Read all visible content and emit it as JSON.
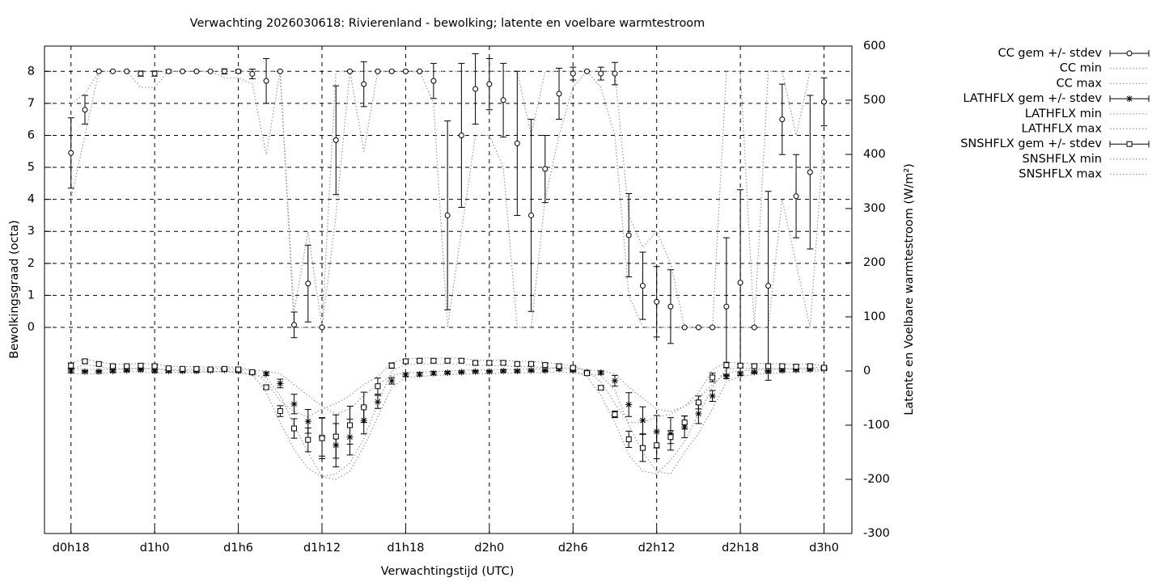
{
  "chart_data": {
    "type": "scatter",
    "title": "Verwachting 2026030618: Rivierenland - bewolking; latente en voelbare warmtestroom",
    "x_label": "Verwachtingstijd (UTC)",
    "y_label": "Bewolkingsgraad (octa)",
    "y2_label": "Latente en Voelbare warmtestroom (W/m²)",
    "x": [
      0,
      1,
      2,
      3,
      4,
      5,
      6,
      7,
      8,
      9,
      10,
      11,
      12,
      13,
      14,
      15,
      16,
      17,
      18,
      19,
      20,
      21,
      22,
      23,
      24,
      25,
      26,
      27,
      28,
      29,
      30,
      31,
      32,
      33,
      34,
      35,
      36,
      37,
      38,
      39,
      40,
      41,
      42,
      43,
      44,
      45,
      46,
      47,
      48,
      49,
      50,
      51,
      52,
      53,
      54
    ],
    "xlim": [
      -1.9,
      56
    ],
    "xticks": [
      {
        "value": 0,
        "label": "d0h18"
      },
      {
        "value": 6,
        "label": "d1h0"
      },
      {
        "value": 12,
        "label": "d1h6"
      },
      {
        "value": 18,
        "label": "d1h12"
      },
      {
        "value": 24,
        "label": "d1h18"
      },
      {
        "value": 30,
        "label": "d2h0"
      },
      {
        "value": 36,
        "label": "d2h6"
      },
      {
        "value": 42,
        "label": "d2h12"
      },
      {
        "value": 48,
        "label": "d2h18"
      },
      {
        "value": 54,
        "label": "d3h0"
      }
    ],
    "ylim": [
      -6.44,
      8.79
    ],
    "yticks": [
      0,
      1,
      2,
      3,
      4,
      5,
      6,
      7,
      8
    ],
    "y2lim": [
      -300,
      600
    ],
    "y2ticks": [
      -300,
      -200,
      -100,
      0,
      100,
      200,
      300,
      400,
      500,
      600
    ],
    "grid": true,
    "legend": "outside-top-right",
    "series": [
      {
        "name": "CC gem +/- stdev",
        "style": "errorbars",
        "marker": "circle",
        "color": "#000000",
        "values": [
          5.45,
          6.8,
          8,
          8,
          8,
          7.93,
          7.93,
          8,
          8,
          8,
          8,
          8,
          8,
          7.92,
          7.7,
          8,
          0.08,
          1.37,
          0,
          5.85,
          8,
          7.6,
          8,
          8,
          8,
          8,
          7.7,
          3.5,
          6.0,
          7.45,
          7.6,
          7.1,
          5.75,
          3.5,
          4.95,
          7.3,
          7.93,
          8,
          7.93,
          7.93,
          2.88,
          1.3,
          0.8,
          0.65,
          0,
          0,
          0,
          0.65,
          1.4,
          0,
          1.3,
          6.5,
          4.1,
          4.85,
          7.05
        ],
        "errors": [
          1.1,
          0.45,
          0,
          0,
          0,
          0.08,
          0.08,
          0.05,
          0,
          0,
          0,
          0.08,
          0.05,
          0.15,
          0.7,
          0,
          0.4,
          1.2,
          0,
          1.7,
          0,
          0.7,
          0,
          0,
          0,
          0,
          0.55,
          2.95,
          2.25,
          1.1,
          0.8,
          1.15,
          2.25,
          3.0,
          1.05,
          0.8,
          0.2,
          0,
          0.2,
          0.35,
          1.3,
          1.05,
          1.1,
          1.15,
          0,
          0,
          0,
          2.15,
          2.9,
          0,
          2.95,
          1.1,
          1.3,
          2.4,
          0.75
        ]
      },
      {
        "name": "CC min",
        "style": "dotted",
        "color": "#999999",
        "values": [
          4,
          6,
          8,
          8,
          8,
          7.5,
          7.5,
          8,
          8,
          8,
          8,
          7.8,
          7.8,
          7.6,
          5.4,
          8,
          0,
          0,
          0,
          3.5,
          8,
          5.5,
          8,
          8,
          8,
          8,
          7,
          0,
          3,
          6,
          6,
          5,
          0,
          0,
          4,
          6,
          7.5,
          8,
          7.5,
          6,
          1,
          0,
          0,
          0,
          0,
          0,
          0,
          0,
          0,
          0,
          0,
          4,
          2,
          0,
          6
        ]
      },
      {
        "name": "CC max",
        "style": "dotted",
        "color": "#999999",
        "values": [
          7,
          7.3,
          8,
          8,
          8,
          8,
          8,
          8,
          8,
          8,
          8,
          8,
          8,
          8,
          8,
          8,
          0.5,
          3,
          0,
          8,
          8,
          8,
          8,
          8,
          8,
          8,
          8,
          8,
          8,
          8,
          8,
          8,
          8,
          6,
          8,
          8,
          8,
          8,
          8,
          8,
          3.5,
          2.5,
          3,
          2,
          0,
          0,
          0,
          8,
          8,
          0,
          8,
          8,
          6,
          8,
          8
        ]
      },
      {
        "name": "LATHFLX gem +/- stdev",
        "style": "errorbars",
        "marker": "star",
        "color": "#000000",
        "axis": "y2",
        "values": [
          0,
          -1,
          -1,
          0,
          1,
          2,
          0,
          0,
          0,
          0,
          1,
          2,
          0,
          -3,
          -5,
          -23,
          -61,
          -93,
          -122,
          -137,
          -122,
          -91,
          -57,
          -18,
          -7,
          -6,
          -4,
          -3,
          -2,
          -1,
          -1,
          0,
          0,
          1,
          1,
          4,
          1,
          -2,
          -3,
          -18,
          -62,
          -91,
          -112,
          -116,
          -103,
          -79,
          -46,
          -10,
          -5,
          -2,
          -1,
          1,
          2,
          3,
          4
        ],
        "errors": [
          3,
          2,
          2,
          2,
          2,
          2,
          2,
          2,
          2,
          2,
          2,
          2,
          2,
          2,
          3,
          8,
          18,
          22,
          35,
          40,
          33,
          25,
          12,
          6,
          3,
          3,
          3,
          2,
          2,
          2,
          2,
          2,
          2,
          2,
          2,
          3,
          2,
          2,
          3,
          10,
          22,
          25,
          30,
          30,
          20,
          18,
          10,
          4,
          3,
          2,
          2,
          2,
          2,
          2,
          2
        ]
      },
      {
        "name": "LATHFLX min",
        "style": "dotted",
        "color": "#999999",
        "axis": "y2",
        "values": [
          -5,
          -5,
          -5,
          -3,
          -2,
          -1,
          -4,
          -3,
          -3,
          -3,
          -2,
          -1,
          -4,
          -8,
          -12,
          -45,
          -100,
          -150,
          -195,
          -200,
          -185,
          -140,
          -85,
          -30,
          -12,
          -10,
          -8,
          -7,
          -6,
          -5,
          -5,
          -4,
          -4,
          -3,
          -3,
          -1,
          -4,
          -6,
          -8,
          -35,
          -100,
          -150,
          -185,
          -190,
          -150,
          -115,
          -70,
          -20,
          -10,
          -6,
          -5,
          -3,
          -2,
          -1,
          0
        ]
      },
      {
        "name": "LATHFLX max",
        "style": "dotted",
        "color": "#999999",
        "axis": "y2",
        "values": [
          5,
          3,
          3,
          3,
          4,
          5,
          4,
          3,
          3,
          3,
          4,
          5,
          3,
          1,
          0,
          -5,
          -25,
          -45,
          -65,
          -80,
          -70,
          -45,
          -25,
          -8,
          -3,
          -2,
          -1,
          0,
          1,
          2,
          2,
          3,
          3,
          4,
          4,
          7,
          5,
          2,
          1,
          -5,
          -30,
          -50,
          -70,
          -75,
          -65,
          -50,
          -25,
          -3,
          0,
          2,
          3,
          4,
          5,
          6,
          7
        ]
      },
      {
        "name": "SNSHFLX gem +/- stdev",
        "style": "errorbars",
        "marker": "square",
        "color": "#000000",
        "axis": "y2",
        "values": [
          10,
          18,
          13,
          9,
          9,
          10,
          9,
          5,
          4,
          4,
          3,
          4,
          3,
          -2,
          -30,
          -74,
          -106,
          -127,
          -124,
          -121,
          -100,
          -67,
          -28,
          10,
          18,
          19,
          19,
          19,
          19,
          15,
          15,
          15,
          13,
          13,
          11,
          9,
          6,
          -4,
          -31,
          -80,
          -126,
          -142,
          -137,
          -122,
          -95,
          -58,
          -12,
          11,
          10,
          9,
          9,
          9,
          8,
          9,
          6
        ],
        "errors": [
          5,
          3,
          3,
          2,
          2,
          3,
          2,
          2,
          2,
          2,
          2,
          2,
          2,
          2,
          4,
          10,
          18,
          22,
          38,
          40,
          35,
          28,
          15,
          5,
          3,
          3,
          3,
          3,
          3,
          3,
          3,
          3,
          3,
          3,
          3,
          3,
          3,
          4,
          4,
          6,
          15,
          25,
          25,
          12,
          12,
          12,
          8,
          5,
          3,
          3,
          3,
          3,
          3,
          3,
          3
        ]
      },
      {
        "name": "SNSHFLX min",
        "style": "dotted",
        "color": "#999999",
        "axis": "y2",
        "values": [
          3,
          12,
          8,
          4,
          4,
          5,
          4,
          1,
          0,
          0,
          -1,
          0,
          -1,
          -6,
          -40,
          -95,
          -145,
          -180,
          -195,
          -190,
          -170,
          -125,
          -60,
          0,
          12,
          13,
          13,
          13,
          13,
          10,
          10,
          10,
          8,
          8,
          6,
          5,
          2,
          -10,
          -45,
          -95,
          -155,
          -185,
          -190,
          -165,
          -130,
          -80,
          -30,
          4,
          5,
          4,
          4,
          4,
          3,
          4,
          2
        ]
      },
      {
        "name": "SNSHFLX max",
        "style": "dotted",
        "color": "#999999",
        "axis": "y2",
        "values": [
          15,
          22,
          17,
          13,
          13,
          14,
          13,
          9,
          8,
          8,
          7,
          8,
          7,
          2,
          -20,
          -55,
          -75,
          -85,
          -70,
          -60,
          -45,
          -25,
          -10,
          15,
          23,
          24,
          24,
          24,
          24,
          20,
          20,
          20,
          18,
          18,
          16,
          13,
          10,
          0,
          -20,
          -60,
          -95,
          -95,
          -85,
          -80,
          -65,
          -40,
          2,
          16,
          15,
          14,
          14,
          13,
          13,
          13,
          10
        ]
      }
    ]
  }
}
